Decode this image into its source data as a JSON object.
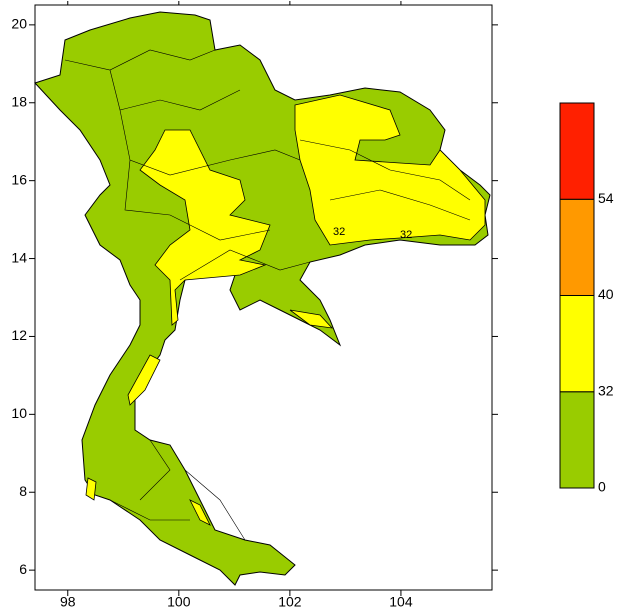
{
  "map": {
    "xlim": [
      97.41,
      105.64
    ],
    "ylim": [
      5.49,
      20.51
    ],
    "xticks": [
      98,
      100,
      102,
      104
    ],
    "yticks": [
      6,
      8,
      10,
      12,
      14,
      16,
      18,
      20
    ],
    "legend": {
      "levels": [
        0,
        32,
        40,
        54
      ],
      "colors": [
        "#99cc00",
        "#ffff00",
        "#ff9900",
        "#ff2000"
      ]
    },
    "contour_labels": [
      32,
      32
    ]
  }
}
